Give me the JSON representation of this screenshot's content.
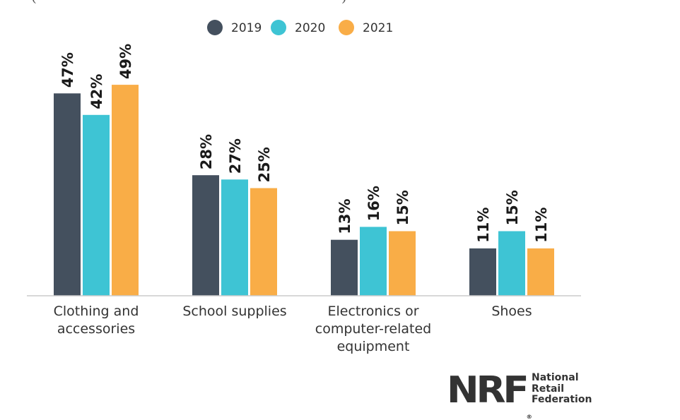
{
  "header_fragment": "(",
  "header_fragment_end": ")",
  "chart_data": {
    "type": "bar",
    "categories": [
      [
        "Clothing and",
        "accessories"
      ],
      [
        "School supplies"
      ],
      [
        "Electronics or",
        "computer-related",
        "equipment"
      ],
      [
        "Shoes"
      ]
    ],
    "series": [
      {
        "name": "2019",
        "color": "#44505e",
        "values": [
          47,
          28,
          13,
          11
        ],
        "labels": [
          "47%",
          "28%",
          "13%",
          "11%"
        ]
      },
      {
        "name": "2020",
        "color": "#3ec4d4",
        "values": [
          42,
          27,
          16,
          15
        ],
        "labels": [
          "42%",
          "27%",
          "16%",
          "15%"
        ]
      },
      {
        "name": "2021",
        "color": "#f9ad47",
        "values": [
          49,
          25,
          15,
          11
        ],
        "labels": [
          "49%",
          "25%",
          "15%",
          "11%"
        ]
      }
    ],
    "ylim": [
      0,
      50
    ],
    "legend_position": "top-center",
    "grid": false
  },
  "logo": {
    "mark": "NRF",
    "registered": "®",
    "name_lines": [
      "National",
      "Retail",
      "Federation"
    ]
  }
}
